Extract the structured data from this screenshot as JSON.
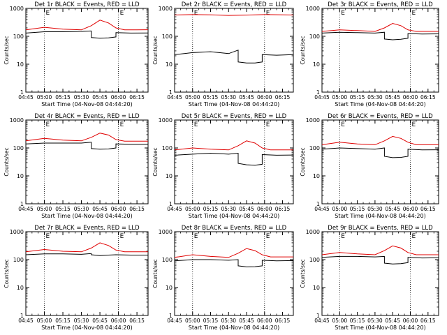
{
  "colors": {
    "events": "#000000",
    "lld": "#e00000"
  },
  "chart_data": [
    {
      "type": "line",
      "title": "Det 1r BLACK = Events, RED = LLD",
      "xlabel": "Start Time (04-Nov-08 04:44:20)",
      "ylabel": "Counts/sec",
      "yscale": "log",
      "ylim": [
        1,
        1000
      ],
      "xlim": [
        "04:45",
        "06:24"
      ],
      "x_ticks": [
        "04:45",
        "05:00",
        "05:15",
        "05:30",
        "05:45",
        "06:00",
        "06:15"
      ],
      "y_ticks": [
        "1",
        "10",
        "100",
        "1000"
      ],
      "markers": [
        {
          "time": "05:00",
          "label": "E"
        },
        {
          "time": "06:00",
          "label": "E"
        }
      ],
      "series": [
        {
          "name": "Events",
          "color": "black",
          "x": [
            "04:45",
            "05:00",
            "05:15",
            "05:30",
            "05:38",
            "05:38",
            "05:45",
            "05:52",
            "05:58",
            "05:58",
            "06:10",
            "06:24"
          ],
          "values": [
            130,
            145,
            145,
            150,
            155,
            90,
            85,
            88,
            95,
            135,
            130,
            132
          ]
        },
        {
          "name": "LLD",
          "color": "red",
          "x": [
            "04:45",
            "05:00",
            "05:15",
            "05:30",
            "05:38",
            "05:45",
            "05:52",
            "05:58",
            "06:05",
            "06:15",
            "06:24"
          ],
          "values": [
            170,
            210,
            180,
            170,
            240,
            380,
            300,
            200,
            170,
            170,
            172
          ]
        }
      ]
    },
    {
      "type": "line",
      "title": "Det 2r BLACK = Events, RED = LLD",
      "xlabel": "Start Time (04-Nov-08 04:44:20)",
      "ylabel": "Counts/sec",
      "yscale": "log",
      "ylim": [
        1,
        1000
      ],
      "xlim": [
        "04:45",
        "06:24"
      ],
      "x_ticks": [
        "04:45",
        "05:00",
        "05:15",
        "05:30",
        "05:45",
        "06:00",
        "06:15"
      ],
      "y_ticks": [
        "1",
        "10",
        "100",
        "1000"
      ],
      "markers": [
        {
          "time": "05:00",
          "label": "E"
        },
        {
          "time": "06:00",
          "label": "E"
        }
      ],
      "series": [
        {
          "name": "Events",
          "color": "black",
          "x": [
            "04:45",
            "05:00",
            "05:15",
            "05:30",
            "05:38",
            "05:38",
            "05:45",
            "05:52",
            "05:58",
            "05:58",
            "06:10",
            "06:24"
          ],
          "values": [
            22,
            26,
            28,
            24,
            32,
            12,
            11,
            11,
            12,
            22,
            21,
            22
          ]
        },
        {
          "name": "LLD",
          "color": "red",
          "x": [
            "04:45",
            "05:00",
            "05:15",
            "05:30",
            "05:45",
            "06:00",
            "06:15",
            "06:24"
          ],
          "values": [
            580,
            600,
            590,
            560,
            575,
            600,
            590,
            580
          ]
        }
      ]
    },
    {
      "type": "line",
      "title": "Det 3r BLACK = Events, RED = LLD",
      "xlabel": "Start Time (04-Nov-08 04:44:20)",
      "ylabel": "Counts/sec",
      "yscale": "log",
      "ylim": [
        1,
        1000
      ],
      "xlim": [
        "04:45",
        "06:24"
      ],
      "x_ticks": [
        "04:45",
        "05:00",
        "05:15",
        "05:30",
        "05:45",
        "06:00",
        "06:15"
      ],
      "y_ticks": [
        "1",
        "10",
        "100",
        "1000"
      ],
      "markers": [
        {
          "time": "05:00",
          "label": "E"
        },
        {
          "time": "06:00",
          "label": "E"
        }
      ],
      "series": [
        {
          "name": "Events",
          "color": "black",
          "x": [
            "04:45",
            "05:00",
            "05:15",
            "05:30",
            "05:38",
            "05:38",
            "05:45",
            "05:52",
            "05:58",
            "05:58",
            "06:10",
            "06:24"
          ],
          "values": [
            130,
            140,
            135,
            130,
            140,
            80,
            75,
            78,
            85,
            125,
            120,
            122
          ]
        },
        {
          "name": "LLD",
          "color": "red",
          "x": [
            "04:45",
            "05:00",
            "05:15",
            "05:30",
            "05:38",
            "05:45",
            "05:52",
            "05:58",
            "06:05",
            "06:15",
            "06:24"
          ],
          "values": [
            150,
            170,
            160,
            150,
            200,
            290,
            240,
            170,
            150,
            150,
            150
          ]
        }
      ]
    },
    {
      "type": "line",
      "title": "Det 4r BLACK = Events, RED = LLD",
      "xlabel": "Start Time (04-Nov-08 04:44:20)",
      "ylabel": "Counts/sec",
      "yscale": "log",
      "ylim": [
        1,
        1000
      ],
      "xlim": [
        "04:45",
        "06:24"
      ],
      "x_ticks": [
        "04:45",
        "05:00",
        "05:15",
        "05:30",
        "05:45",
        "06:00",
        "06:15"
      ],
      "y_ticks": [
        "1",
        "10",
        "100",
        "1000"
      ],
      "markers": [
        {
          "time": "05:00",
          "label": "E"
        },
        {
          "time": "06:00",
          "label": "E"
        }
      ],
      "series": [
        {
          "name": "Events",
          "color": "black",
          "x": [
            "04:45",
            "05:00",
            "05:15",
            "05:30",
            "05:38",
            "05:38",
            "05:45",
            "05:52",
            "05:58",
            "05:58",
            "06:10",
            "06:24"
          ],
          "values": [
            140,
            150,
            150,
            150,
            160,
            95,
            90,
            92,
            100,
            140,
            135,
            135
          ]
        },
        {
          "name": "LLD",
          "color": "red",
          "x": [
            "04:45",
            "05:00",
            "05:15",
            "05:30",
            "05:38",
            "05:45",
            "05:52",
            "05:58",
            "06:05",
            "06:15",
            "06:24"
          ],
          "values": [
            180,
            220,
            190,
            180,
            240,
            340,
            290,
            200,
            175,
            175,
            175
          ]
        }
      ]
    },
    {
      "type": "line",
      "title": "Det 5r BLACK = Events, RED = LLD",
      "xlabel": "Start Time (04-Nov-08 04:44:20)",
      "ylabel": "Counts/sec",
      "yscale": "log",
      "ylim": [
        1,
        1000
      ],
      "xlim": [
        "04:45",
        "06:24"
      ],
      "x_ticks": [
        "04:45",
        "05:00",
        "05:15",
        "05:30",
        "05:45",
        "06:00",
        "06:15"
      ],
      "y_ticks": [
        "1",
        "10",
        "100",
        "1000"
      ],
      "markers": [
        {
          "time": "05:00",
          "label": "E"
        },
        {
          "time": "06:00",
          "label": "E"
        }
      ],
      "series": [
        {
          "name": "Events",
          "color": "black",
          "x": [
            "04:45",
            "05:00",
            "05:15",
            "05:30",
            "05:38",
            "05:38",
            "05:45",
            "05:52",
            "05:58",
            "05:58",
            "06:10",
            "06:24"
          ],
          "values": [
            55,
            60,
            65,
            60,
            65,
            28,
            25,
            24,
            26,
            58,
            55,
            56
          ]
        },
        {
          "name": "LLD",
          "color": "red",
          "x": [
            "04:45",
            "05:00",
            "05:15",
            "05:30",
            "05:38",
            "05:45",
            "05:52",
            "05:58",
            "06:05",
            "06:15",
            "06:24"
          ],
          "values": [
            85,
            100,
            90,
            85,
            120,
            180,
            150,
            100,
            85,
            85,
            85
          ]
        }
      ]
    },
    {
      "type": "line",
      "title": "Det 6r BLACK = Events, RED = LLD",
      "xlabel": "Start Time (04-Nov-08 04:44:20)",
      "ylabel": "Counts/sec",
      "yscale": "log",
      "ylim": [
        1,
        1000
      ],
      "xlim": [
        "04:45",
        "06:24"
      ],
      "x_ticks": [
        "04:45",
        "05:00",
        "05:15",
        "05:30",
        "05:45",
        "06:00",
        "06:15"
      ],
      "y_ticks": [
        "1",
        "10",
        "100",
        "1000"
      ],
      "markers": [
        {
          "time": "05:00",
          "label": "E"
        },
        {
          "time": "06:00",
          "label": "E"
        }
      ],
      "series": [
        {
          "name": "Events",
          "color": "black",
          "x": [
            "04:45",
            "05:00",
            "05:15",
            "05:30",
            "05:38",
            "05:38",
            "05:45",
            "05:52",
            "05:58",
            "05:58",
            "06:10",
            "06:24"
          ],
          "values": [
            90,
            100,
            95,
            90,
            100,
            50,
            45,
            46,
            50,
            90,
            85,
            86
          ]
        },
        {
          "name": "LLD",
          "color": "red",
          "x": [
            "04:45",
            "05:00",
            "05:15",
            "05:30",
            "05:38",
            "05:45",
            "05:52",
            "05:58",
            "06:05",
            "06:15",
            "06:24"
          ],
          "values": [
            130,
            160,
            140,
            130,
            180,
            260,
            220,
            160,
            130,
            130,
            130
          ]
        }
      ]
    },
    {
      "type": "line",
      "title": "Det 7r BLACK = Events, RED = LLD",
      "xlabel": "Start Time (04-Nov-08 04:44:20)",
      "ylabel": "Counts/sec",
      "yscale": "log",
      "ylim": [
        1,
        1000
      ],
      "xlim": [
        "04:45",
        "06:24"
      ],
      "x_ticks": [
        "04:45",
        "05:00",
        "05:15",
        "05:30",
        "05:45",
        "06:00",
        "06:15"
      ],
      "y_ticks": [
        "1",
        "10",
        "100",
        "1000"
      ],
      "markers": [
        {
          "time": "05:00",
          "label": "E"
        },
        {
          "time": "06:00",
          "label": "E"
        }
      ],
      "series": [
        {
          "name": "Events",
          "color": "black",
          "x": [
            "04:45",
            "05:00",
            "05:15",
            "05:30",
            "05:38",
            "05:38",
            "05:45",
            "05:52",
            "05:58",
            "05:58",
            "06:10",
            "06:24"
          ],
          "values": [
            150,
            160,
            160,
            155,
            165,
            150,
            140,
            145,
            150,
            150,
            145,
            145
          ]
        },
        {
          "name": "LLD",
          "color": "red",
          "x": [
            "04:45",
            "05:00",
            "05:15",
            "05:30",
            "05:38",
            "05:45",
            "05:52",
            "05:58",
            "06:05",
            "06:15",
            "06:24"
          ],
          "values": [
            190,
            230,
            200,
            190,
            260,
            400,
            320,
            220,
            190,
            190,
            190
          ]
        }
      ]
    },
    {
      "type": "line",
      "title": "Det 8r BLACK = Events, RED = LLD",
      "xlabel": "Start Time (04-Nov-08 04:44:20)",
      "ylabel": "Counts/sec",
      "yscale": "log",
      "ylim": [
        1,
        1000
      ],
      "xlim": [
        "04:45",
        "06:24"
      ],
      "x_ticks": [
        "04:45",
        "05:00",
        "05:15",
        "05:30",
        "05:45",
        "06:00",
        "06:15"
      ],
      "y_ticks": [
        "1",
        "10",
        "100",
        "1000"
      ],
      "markers": [
        {
          "time": "05:00",
          "label": "E"
        },
        {
          "time": "06:00",
          "label": "E"
        }
      ],
      "series": [
        {
          "name": "Events",
          "color": "black",
          "x": [
            "04:45",
            "05:00",
            "05:15",
            "05:30",
            "05:38",
            "05:38",
            "05:45",
            "05:52",
            "05:58",
            "05:58",
            "06:10",
            "06:24"
          ],
          "values": [
            90,
            100,
            100,
            95,
            100,
            60,
            55,
            56,
            60,
            95,
            90,
            92
          ]
        },
        {
          "name": "LLD",
          "color": "red",
          "x": [
            "04:45",
            "05:00",
            "05:15",
            "05:30",
            "05:38",
            "05:45",
            "05:52",
            "05:58",
            "06:05",
            "06:15",
            "06:24"
          ],
          "values": [
            120,
            150,
            130,
            120,
            170,
            250,
            210,
            150,
            125,
            125,
            125
          ]
        }
      ]
    },
    {
      "type": "line",
      "title": "Det 9r BLACK = Events, RED = LLD",
      "xlabel": "Start Time (04-Nov-08 04:44:20)",
      "ylabel": "Counts/sec",
      "yscale": "log",
      "ylim": [
        1,
        1000
      ],
      "xlim": [
        "04:45",
        "06:24"
      ],
      "x_ticks": [
        "04:45",
        "05:00",
        "05:15",
        "05:30",
        "05:45",
        "06:00",
        "06:15"
      ],
      "y_ticks": [
        "1",
        "10",
        "100",
        "1000"
      ],
      "markers": [
        {
          "time": "05:00",
          "label": "E"
        },
        {
          "time": "06:00",
          "label": "E"
        }
      ],
      "series": [
        {
          "name": "Events",
          "color": "black",
          "x": [
            "04:45",
            "05:00",
            "05:15",
            "05:30",
            "05:38",
            "05:38",
            "05:45",
            "05:52",
            "05:58",
            "05:58",
            "06:10",
            "06:24"
          ],
          "values": [
            120,
            130,
            130,
            125,
            130,
            75,
            70,
            72,
            78,
            120,
            115,
            116
          ]
        },
        {
          "name": "LLD",
          "color": "red",
          "x": [
            "04:45",
            "05:00",
            "05:15",
            "05:30",
            "05:38",
            "05:45",
            "05:52",
            "05:58",
            "06:05",
            "06:15",
            "06:24"
          ],
          "values": [
            150,
            180,
            160,
            150,
            210,
            310,
            260,
            180,
            150,
            150,
            150
          ]
        }
      ]
    }
  ]
}
